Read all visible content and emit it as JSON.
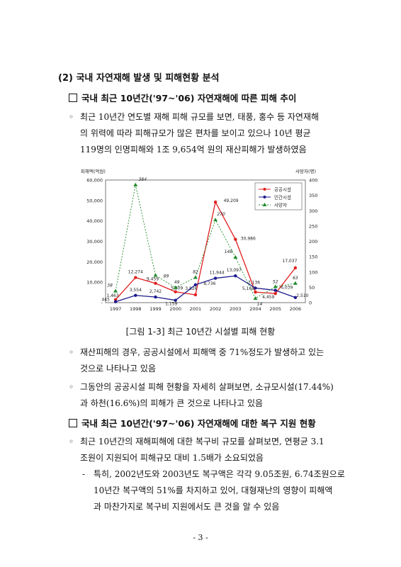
{
  "section_title": "(2) 국내 자연재해 발생 및 피해현황 분석",
  "sub1": {
    "title": "국내 최근 10년간('97~'06) 자연재해에 따른 피해 추이",
    "bullet": "◦",
    "para_lines": [
      "최근 10년간 연도별 재해 피해 규모를 보면, 태풍, 홍수 등 자연재해",
      "의 위력에 따라 피해규모가 많은 편차를 보이고 있으나 10년 평균",
      "119명의 인명피해와 1조 9,654억 원의 재산피해가 발생하였음"
    ]
  },
  "figure_caption": "[그림 1-3] 최근 10년간 시설별 피해 현황",
  "para2_lines": [
    "재산피해의 경우, 공공시설에서 피해액 중 71%정도가 발생하고 있는",
    "것으로 나타나고 있음"
  ],
  "para3_lines": [
    "그동안의 공공시설 피해 현황을 자세히 살펴보면, 소규모시설(17.44%)",
    "과 하천(16.6%)의 피해가 큰 것으로 나타나고 있음"
  ],
  "sub2": {
    "title": "국내 최근 10년간('97~'06) 자연재해에 대한 복구 지원 현황",
    "para_lines": [
      "최근 10년간의 재해피해에 대한 복구비 규모를 살펴보면, 연평균 3.1",
      "조원이 지원되어 피해규모 대비 1.5배가 소요되었음"
    ],
    "dash": "-",
    "dash_lines": [
      "특히, 2002년도와 2003년도 복구액은 각각 9.05조원, 6.74조원으로",
      "10년간 복구액의 51%를 차지하고 있어, 대형재난의 영향이 피해액",
      "과 마찬가지로 복구비 지원에서도 큰 것을 알 수 있음"
    ]
  },
  "page_number": "- 3 -",
  "chart_data": {
    "type": "line",
    "x": [
      "1997",
      "1998",
      "1999",
      "2000",
      "2001",
      "2002",
      "2003",
      "2004",
      "2005",
      "2006"
    ],
    "ylabel_left": "피해액(억원)",
    "ylabel_right": "사망자(명)",
    "ylim_left": [
      0,
      60000
    ],
    "ylim_right": [
      0,
      400
    ],
    "yticks_left": [
      "60,000",
      "50,000",
      "40,000",
      "30,000",
      "20,000",
      "10,000",
      "-"
    ],
    "yticks_right": [
      "400",
      "350",
      "300",
      "250",
      "200",
      "150",
      "100",
      "50",
      "0"
    ],
    "legend_position": "top-right",
    "series": [
      {
        "name": "공공시설",
        "axis": "left",
        "color": "#e01e1e",
        "values": [
          1463,
          12274,
          9459,
          5309,
          3826,
          49209,
          30986,
          5168,
          4459,
          17037
        ],
        "labels": [
          "1,463",
          "12,274",
          "9,459",
          "5,309",
          "3,826",
          "49,209",
          "30,986",
          "5,168",
          "4,459",
          "17,037"
        ]
      },
      {
        "name": "민간시설",
        "axis": "left",
        "color": "#1a1a8c",
        "values": [
          445,
          3554,
          2742,
          1159,
          8736,
          11944,
          13097,
          7136,
          6039,
          2510
        ],
        "labels": [
          "445",
          "3,554",
          "2,742",
          "1,159",
          "8,736",
          "11,944",
          "13,097",
          "7,136",
          "6,039",
          "2,510"
        ]
      },
      {
        "name": "사망자",
        "axis": "right",
        "color": "#1f8a2a",
        "values": [
          38,
          384,
          89,
          49,
          82,
          270,
          148,
          14,
          52,
          63
        ],
        "labels": [
          "38",
          "384",
          "89",
          "49",
          "82",
          "270",
          "148",
          "14",
          "52",
          "63"
        ]
      }
    ]
  }
}
